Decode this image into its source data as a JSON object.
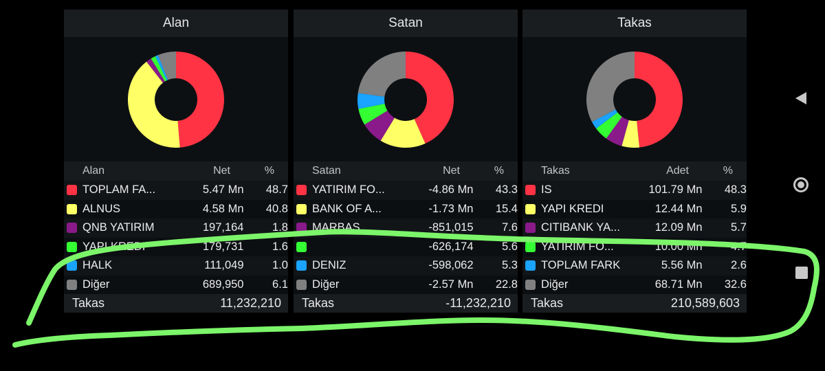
{
  "panels": [
    {
      "title": "Alan",
      "columns": {
        "name": "Alan",
        "net": "Net",
        "pct": "%"
      },
      "rows": [
        {
          "name": "TOPLAM FA...",
          "net": "5.47 Mn",
          "pct": "48.7",
          "color": "#ff3344"
        },
        {
          "name": "ALNUS",
          "net": "4.58 Mn",
          "pct": "40.8",
          "color": "#ffff66"
        },
        {
          "name": "QNB YATIRIM",
          "net": "197,164",
          "pct": "1.8",
          "color": "#8a1a8a"
        },
        {
          "name": "YAPI KREDI",
          "net": "179,731",
          "pct": "1.6",
          "color": "#33ff33"
        },
        {
          "name": "HALK",
          "net": "111,049",
          "pct": "1.0",
          "color": "#1aa3ff"
        },
        {
          "name": "Diğer",
          "net": "689,950",
          "pct": "6.1",
          "color": "#808080"
        }
      ],
      "footer_label": "Takas",
      "footer_value": "11,232,210"
    },
    {
      "title": "Satan",
      "columns": {
        "name": "Satan",
        "net": "Net",
        "pct": "%"
      },
      "rows": [
        {
          "name": "YATIRIM FO...",
          "net": "-4.86 Mn",
          "pct": "43.3",
          "color": "#ff3344"
        },
        {
          "name": "BANK OF A...",
          "net": "-1.73 Mn",
          "pct": "15.4",
          "color": "#ffff66"
        },
        {
          "name": "MARBAS",
          "net": "-851,015",
          "pct": "7.6",
          "color": "#8a1a8a"
        },
        {
          "name": "",
          "net": "-626,174",
          "pct": "5.6",
          "color": "#33ff33"
        },
        {
          "name": "DENIZ",
          "net": "-598,062",
          "pct": "5.3",
          "color": "#1aa3ff"
        },
        {
          "name": "Diğer",
          "net": "-2.57 Mn",
          "pct": "22.8",
          "color": "#808080"
        }
      ],
      "footer_label": "Takas",
      "footer_value": "-11,232,210"
    },
    {
      "title": "Takas",
      "columns": {
        "name": "Takas",
        "net": "Adet",
        "pct": "%"
      },
      "rows": [
        {
          "name": "IS",
          "net": "101.79 Mn",
          "pct": "48.3",
          "color": "#ff3344"
        },
        {
          "name": "YAPI KREDI",
          "net": "12.44 Mn",
          "pct": "5.9",
          "color": "#ffff66"
        },
        {
          "name": "CITIBANK YA...",
          "net": "12.09 Mn",
          "pct": "5.7",
          "color": "#8a1a8a"
        },
        {
          "name": "YATIRIM FO...",
          "net": "10.00 Mn",
          "pct": "4.7",
          "color": "#33ff33"
        },
        {
          "name": "TOPLAM FARK",
          "net": "5.56 Mn",
          "pct": "2.6",
          "color": "#1aa3ff"
        },
        {
          "name": "Diğer",
          "net": "68.71 Mn",
          "pct": "32.6",
          "color": "#808080"
        }
      ],
      "footer_label": "Takas",
      "footer_value": "210,589,603"
    }
  ],
  "annotation_color": "#7cf56a"
}
